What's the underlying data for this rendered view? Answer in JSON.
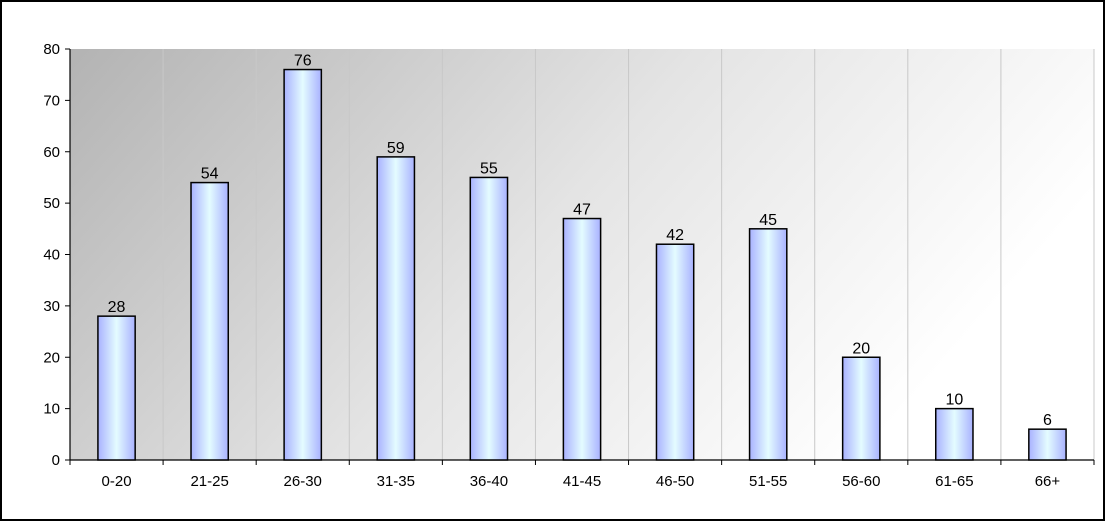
{
  "chart_data": {
    "type": "bar",
    "title": "",
    "xlabel": "",
    "ylabel": "",
    "categories": [
      "0-20",
      "21-25",
      "26-30",
      "31-35",
      "36-40",
      "41-45",
      "46-50",
      "51-55",
      "56-60",
      "61-65",
      "66+"
    ],
    "values": [
      28,
      54,
      76,
      59,
      55,
      47,
      42,
      45,
      20,
      10,
      6
    ],
    "ylim": [
      0,
      80
    ],
    "yticks": [
      0,
      10,
      20,
      30,
      40,
      50,
      60,
      70,
      80
    ],
    "grid": true,
    "legend": "none",
    "data_labels": true,
    "colors": {
      "bar_fill_edge": "#aab4ff",
      "bar_fill_center": "#e2fbff",
      "bar_stroke": "#000000",
      "plot_bg_dark": "#bdbdbd",
      "plot_bg_light": "#ffffff",
      "gridline": "#c8c8c8"
    }
  }
}
